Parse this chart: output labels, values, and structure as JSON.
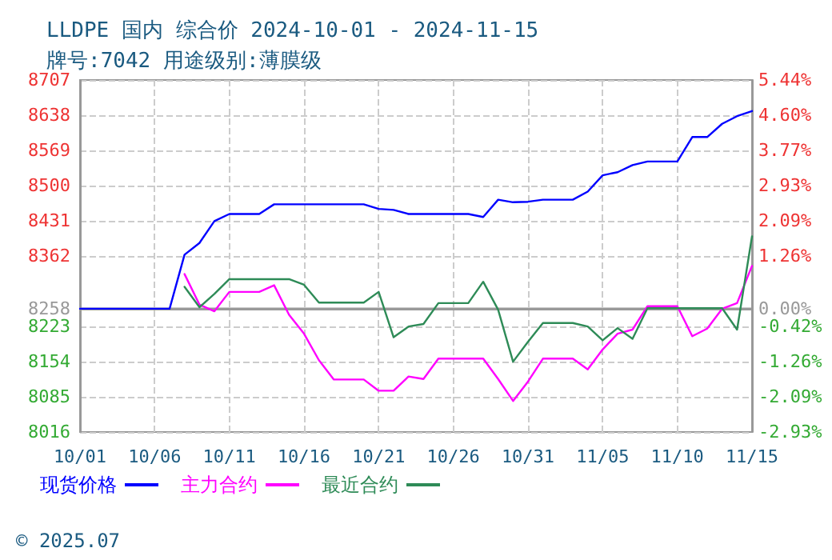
{
  "chart_data": {
    "type": "line",
    "title": "LLDPE 国内 综合价 2024-10-01 - 2024-11-15",
    "subtitle": "牌号:7042 用途级别:薄膜级",
    "annotations": [
      "© 2025.07"
    ],
    "x": [
      "2024-10-01",
      "2024-10-02",
      "2024-10-03",
      "2024-10-04",
      "2024-10-05",
      "2024-10-06",
      "2024-10-07",
      "2024-10-08",
      "2024-10-09",
      "2024-10-10",
      "2024-10-11",
      "2024-10-12",
      "2024-10-13",
      "2024-10-14",
      "2024-10-15",
      "2024-10-16",
      "2024-10-17",
      "2024-10-18",
      "2024-10-19",
      "2024-10-20",
      "2024-10-21",
      "2024-10-22",
      "2024-10-23",
      "2024-10-24",
      "2024-10-25",
      "2024-10-26",
      "2024-10-27",
      "2024-10-28",
      "2024-10-29",
      "2024-10-30",
      "2024-10-31",
      "2024-11-01",
      "2024-11-02",
      "2024-11-03",
      "2024-11-04",
      "2024-11-05",
      "2024-11-06",
      "2024-11-07",
      "2024-11-08",
      "2024-11-09",
      "2024-11-10",
      "2024-11-11",
      "2024-11-12",
      "2024-11-13",
      "2024-11-14",
      "2024-11-15"
    ],
    "series": [
      {
        "name": "现货价格",
        "color": "#0000ff",
        "values": [
          8258,
          8258,
          8258,
          8258,
          8258,
          8258,
          8258,
          8364,
          8387,
          8430,
          8444,
          8444,
          8444,
          8463,
          8463,
          8463,
          8463,
          8463,
          8463,
          8463,
          8454,
          8452,
          8444,
          8444,
          8444,
          8444,
          8444,
          8438,
          8472,
          8467,
          8468,
          8472,
          8472,
          8472,
          8488,
          8520,
          8526,
          8540,
          8547,
          8547,
          8547,
          8595,
          8595,
          8621,
          8636,
          8646
        ]
      },
      {
        "name": "主力合约",
        "color": "#ff00ff",
        "values": [
          null,
          null,
          null,
          null,
          null,
          null,
          null,
          8326,
          8266,
          8253,
          8291,
          8291,
          8291,
          8304,
          8246,
          8209,
          8157,
          8119,
          8119,
          8119,
          8097,
          8097,
          8125,
          8120,
          8160,
          8160,
          8160,
          8160,
          8120,
          8077,
          8115,
          8160,
          8160,
          8160,
          8139,
          8178,
          8209,
          8217,
          8263,
          8263,
          8263,
          8204,
          8219,
          8258,
          8269,
          8342
        ]
      },
      {
        "name": "最近合约",
        "color": "#2e8b57",
        "values": [
          null,
          null,
          null,
          null,
          null,
          null,
          null,
          8301,
          8261,
          8287,
          8316,
          8316,
          8316,
          8316,
          8316,
          8305,
          8270,
          8270,
          8270,
          8270,
          8291,
          8202,
          8223,
          8228,
          8269,
          8269,
          8269,
          8311,
          8256,
          8154,
          8193,
          8230,
          8230,
          8230,
          8223,
          8196,
          8220,
          8199,
          8259,
          8259,
          8259,
          8259,
          8259,
          8259,
          8217,
          8400
        ]
      }
    ],
    "xlim": [
      "2024-10-01",
      "2024-11-15"
    ],
    "xticks": [
      {
        "value": "2024-10-01",
        "label": "10/01"
      },
      {
        "value": "2024-10-06",
        "label": "10/06"
      },
      {
        "value": "2024-10-11",
        "label": "10/11"
      },
      {
        "value": "2024-10-16",
        "label": "10/16"
      },
      {
        "value": "2024-10-21",
        "label": "10/21"
      },
      {
        "value": "2024-10-26",
        "label": "10/26"
      },
      {
        "value": "2024-10-31",
        "label": "10/31"
      },
      {
        "value": "2024-11-05",
        "label": "11/05"
      },
      {
        "value": "2024-11-10",
        "label": "11/10"
      },
      {
        "value": "2024-11-15",
        "label": "11/15"
      }
    ],
    "ylim": [
      8016,
      8707
    ],
    "yticks": [
      8016,
      8085,
      8154,
      8223,
      8258,
      8362,
      8431,
      8500,
      8569,
      8638,
      8707
    ],
    "y2lim": [
      -2.93,
      5.44
    ],
    "y2ticks": [
      {
        "value": -2.93,
        "label": "-2.93%"
      },
      {
        "value": -2.09,
        "label": "-2.09%"
      },
      {
        "value": -1.26,
        "label": "-1.26%"
      },
      {
        "value": -0.42,
        "label": "-0.42%"
      },
      {
        "value": 0,
        "label": "0.00%"
      },
      {
        "value": 1.26,
        "label": "1.26%"
      },
      {
        "value": 2.09,
        "label": "2.09%"
      },
      {
        "value": 2.93,
        "label": "2.93%"
      },
      {
        "value": 3.77,
        "label": "3.77%"
      },
      {
        "value": 4.6,
        "label": "4.60%"
      },
      {
        "value": 5.44,
        "label": "5.44%"
      }
    ],
    "ref_lines": [
      {
        "axis": "y",
        "value": 8258,
        "color": "#999999",
        "line_style": "solid"
      }
    ],
    "grid": true,
    "legend": "bottom left",
    "marker": "none",
    "line_style": "solid"
  }
}
